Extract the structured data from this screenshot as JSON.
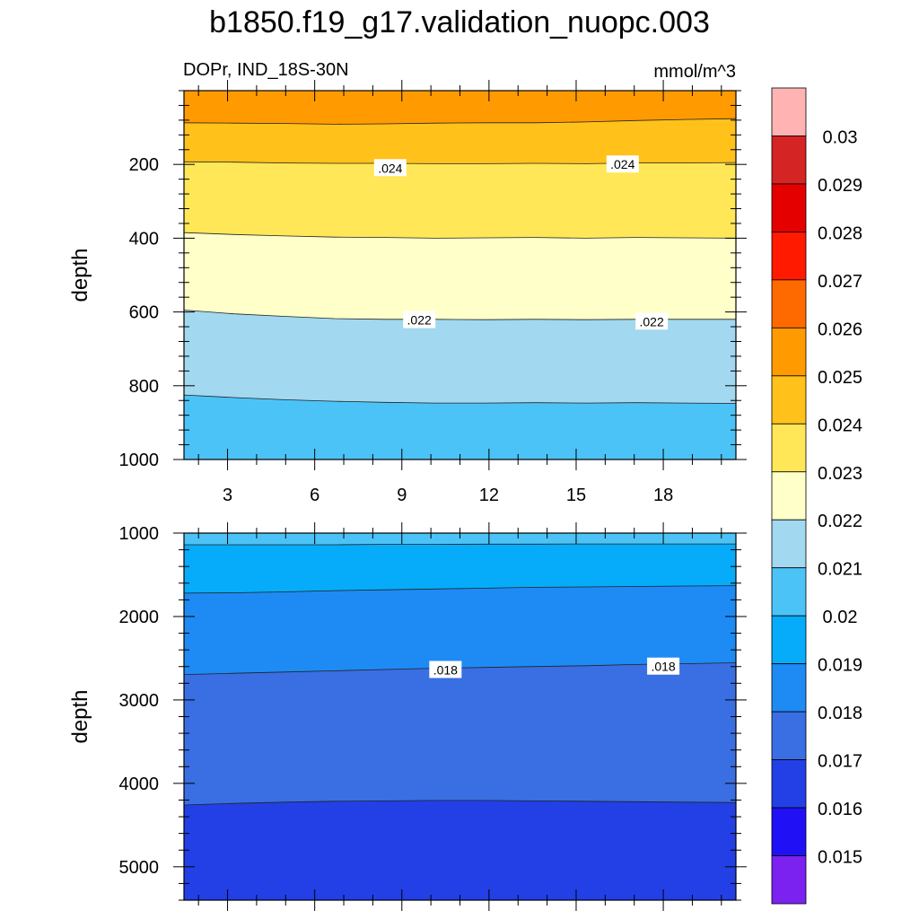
{
  "title": "b1850.f19_g17.validation_nuopc.003",
  "chart_data": {
    "type": "contour",
    "variable_label": "DOPr, IND_18S-30N",
    "units": "mmol/m^3",
    "x_ticks": [
      3,
      6,
      9,
      12,
      15,
      18
    ],
    "x_range": [
      1.5,
      20.5
    ],
    "colorbar": {
      "levels": [
        "0.015",
        "0.016",
        "0.017",
        "0.018",
        "0.019",
        "0.02",
        "0.021",
        "0.022",
        "0.023",
        "0.024",
        "0.025",
        "0.026",
        "0.027",
        "0.028",
        "0.029",
        "0.03"
      ],
      "colors": [
        "#7b22f0",
        "#2010f5",
        "#2240e6",
        "#3a6ee3",
        "#1e8bf5",
        "#06acfa",
        "#4cc3f7",
        "#a2d8f0",
        "#ffffc9",
        "#ffe757",
        "#ffc11a",
        "#ff9b00",
        "#ff6a00",
        "#ff1a00",
        "#e50000",
        "#d42424",
        "#ffb3b3"
      ]
    },
    "panels": [
      {
        "ylabel": "depth",
        "ylim": [
          0,
          1000
        ],
        "y_ticks": [
          200,
          400,
          600,
          800,
          1000
        ],
        "bands": [
          {
            "level": 0.0255,
            "color": "#ff9b00"
          },
          {
            "level": 0.0245,
            "color": "#ffc11a"
          },
          {
            "level": 0.0235,
            "color": "#ffe757"
          },
          {
            "level": 0.0225,
            "color": "#ffffc9"
          },
          {
            "level": 0.0215,
            "color": "#a2d8f0"
          },
          {
            "level": 0.0205,
            "color": "#4cc3f7"
          }
        ],
        "contours": [
          {
            "depths": [
              87,
              88,
              89,
              91,
              90,
              88,
              87,
              87,
              85,
              81,
              78,
              76
            ]
          },
          {
            "depths": [
              193,
              194,
              196,
              197,
              197,
              198,
              198,
              197,
              198,
              196,
              196,
              195
            ]
          },
          {
            "depths": [
              385,
              390,
              394,
              397,
              398,
              400,
              399,
              398,
              400,
              398,
              399,
              400
            ]
          },
          {
            "depths": [
              595,
              605,
              612,
              618,
              620,
              620,
              621,
              620,
              621,
              620,
              620,
              620
            ]
          },
          {
            "depths": [
              825,
              832,
              838,
              842,
              845,
              847,
              847,
              846,
              847,
              846,
              847,
              848
            ]
          }
        ],
        "contour_labels": [
          {
            "text": ".024",
            "x": 8.6,
            "depth": 210
          },
          {
            "text": ".024",
            "x": 16.6,
            "depth": 200
          },
          {
            "text": ".022",
            "x": 9.6,
            "depth": 622
          },
          {
            "text": ".022",
            "x": 17.6,
            "depth": 626
          }
        ]
      },
      {
        "ylabel": "depth",
        "ylim": [
          1000,
          5400
        ],
        "y_ticks": [
          1000,
          2000,
          3000,
          4000,
          5000
        ],
        "bands": [
          {
            "level": 0.0205,
            "color": "#4cc3f7"
          },
          {
            "level": 0.0195,
            "color": "#06acfa"
          },
          {
            "level": 0.0185,
            "color": "#1e8bf5"
          },
          {
            "level": 0.0175,
            "color": "#3a6ee3"
          },
          {
            "level": 0.0165,
            "color": "#2240e6"
          }
        ],
        "contours": [
          {
            "depths": [
              1140,
              1140,
              1140,
              1140,
              1135,
              1135,
              1132,
              1132,
              1130,
              1130,
              1130,
              1130
            ]
          },
          {
            "depths": [
              1720,
              1715,
              1705,
              1690,
              1680,
              1670,
              1660,
              1650,
              1645,
              1640,
              1635,
              1630
            ]
          },
          {
            "depths": [
              2695,
              2680,
              2665,
              2650,
              2635,
              2620,
              2610,
              2600,
              2590,
              2575,
              2565,
              2555
            ]
          },
          {
            "depths": [
              4260,
              4240,
              4225,
              4215,
              4210,
              4205,
              4205,
              4210,
              4215,
              4220,
              4225,
              4230
            ]
          }
        ],
        "contour_labels": [
          {
            "text": ".018",
            "x": 10.5,
            "depth": 2640
          },
          {
            "text": ".018",
            "x": 18.0,
            "depth": 2600
          }
        ]
      }
    ]
  }
}
